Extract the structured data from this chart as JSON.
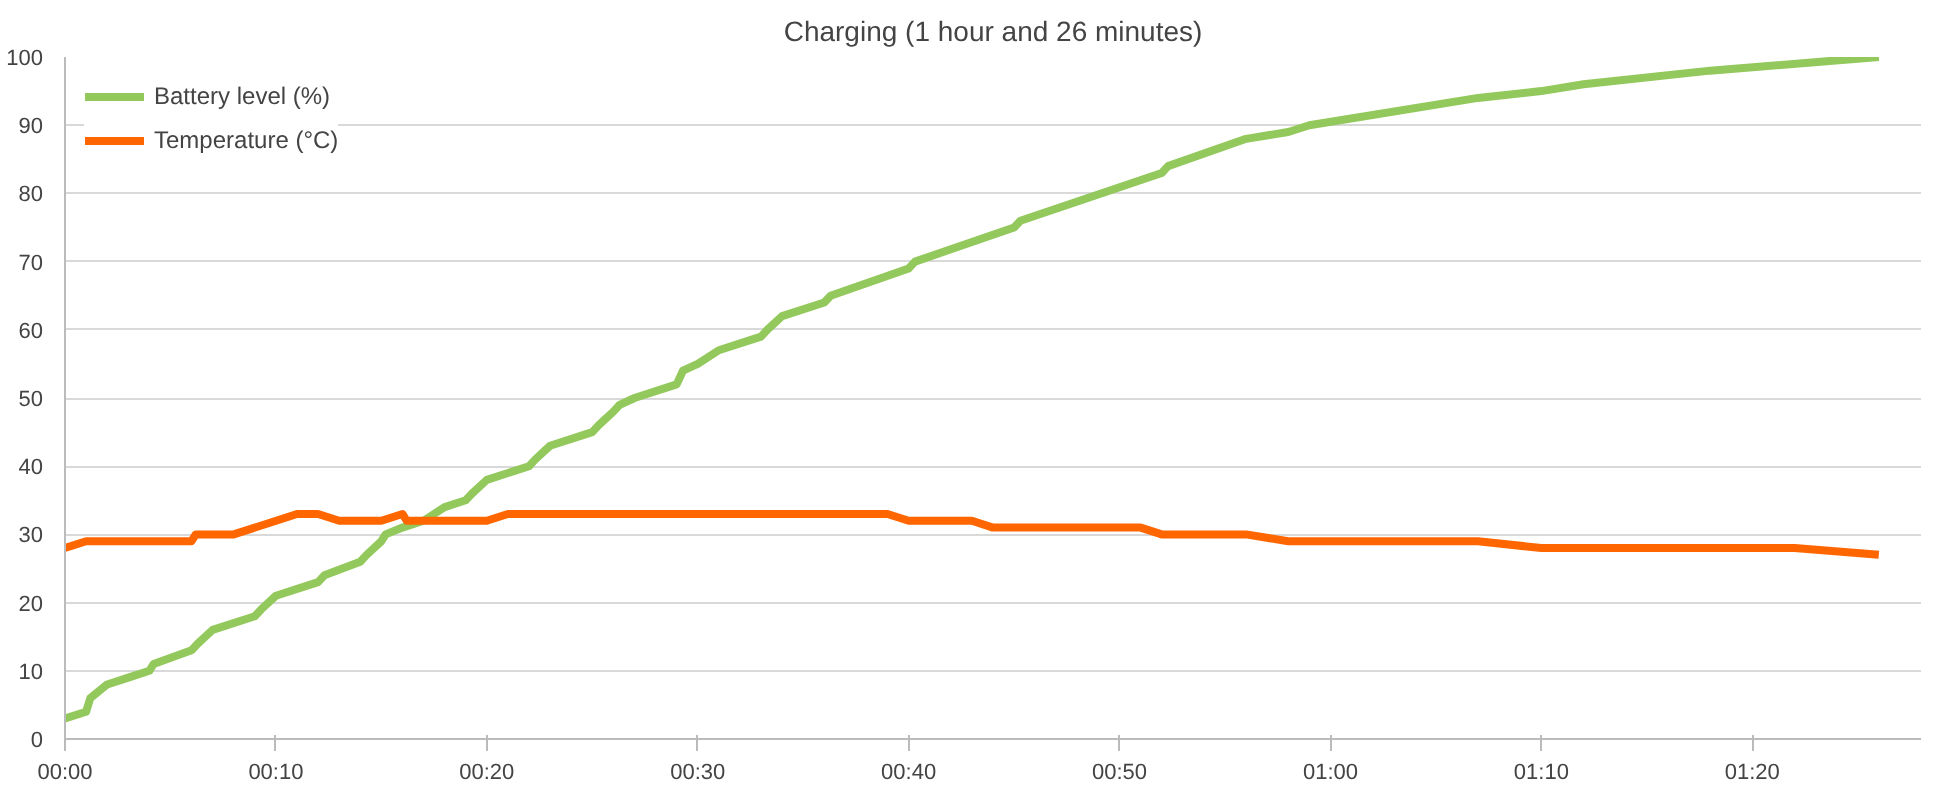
{
  "chart_data": {
    "type": "line",
    "title": "Charging (1 hour and 26 minutes)",
    "xlim": [
      0,
      88
    ],
    "xticks": [
      {
        "value": 0,
        "label": "00:00"
      },
      {
        "value": 10,
        "label": "00:10"
      },
      {
        "value": 20,
        "label": "00:20"
      },
      {
        "value": 30,
        "label": "00:30"
      },
      {
        "value": 40,
        "label": "00:40"
      },
      {
        "value": 50,
        "label": "00:50"
      },
      {
        "value": 60,
        "label": "01:00"
      },
      {
        "value": 70,
        "label": "01:10"
      },
      {
        "value": 80,
        "label": "01:20"
      }
    ],
    "ylim": [
      0,
      100
    ],
    "yticks": [
      0,
      10,
      20,
      30,
      40,
      50,
      60,
      70,
      80,
      90,
      100
    ],
    "grid": "y",
    "legend": "top left",
    "marker": "none",
    "line_style": "solid",
    "series": [
      {
        "name": "Battery level (%)",
        "color": "#93c95c",
        "x": [
          0,
          1,
          1.2,
          2,
          3,
          4,
          4.2,
          6,
          6.3,
          7,
          9,
          9.3,
          10,
          12,
          12.3,
          14,
          14.3,
          15,
          15.2,
          16,
          17,
          18,
          19,
          19.3,
          20,
          22,
          22.3,
          23,
          25,
          25.3,
          26,
          26.3,
          27,
          29,
          29.3,
          30,
          31,
          33,
          33.3,
          34,
          36,
          36.3,
          40,
          40.3,
          45,
          45.3,
          52,
          52.3,
          56,
          58,
          59,
          67,
          70,
          72,
          78,
          86
        ],
        "values": [
          3,
          4,
          6,
          8,
          9,
          10,
          11,
          13,
          14,
          16,
          18,
          19,
          21,
          23,
          24,
          26,
          27,
          29,
          30,
          31,
          32,
          34,
          35,
          36,
          38,
          40,
          41,
          43,
          45,
          46,
          48,
          49,
          50,
          52,
          54,
          55,
          57,
          59,
          60,
          62,
          64,
          65,
          69,
          70,
          75,
          76,
          83,
          84,
          88,
          89,
          90,
          94,
          95,
          96,
          98,
          100
        ]
      },
      {
        "name": "Temperature (°C)",
        "color": "#ff6600",
        "x": [
          0,
          1,
          6,
          6.2,
          8,
          11,
          12,
          13,
          15,
          16,
          16.2,
          20,
          21,
          39,
          40,
          43,
          44,
          51,
          52,
          56,
          58,
          67,
          70,
          82,
          86
        ],
        "values": [
          28,
          29,
          29,
          30,
          30,
          33,
          33,
          32,
          32,
          33,
          32,
          32,
          33,
          33,
          32,
          32,
          31,
          31,
          30,
          30,
          29,
          29,
          28,
          28,
          27
        ]
      }
    ]
  }
}
